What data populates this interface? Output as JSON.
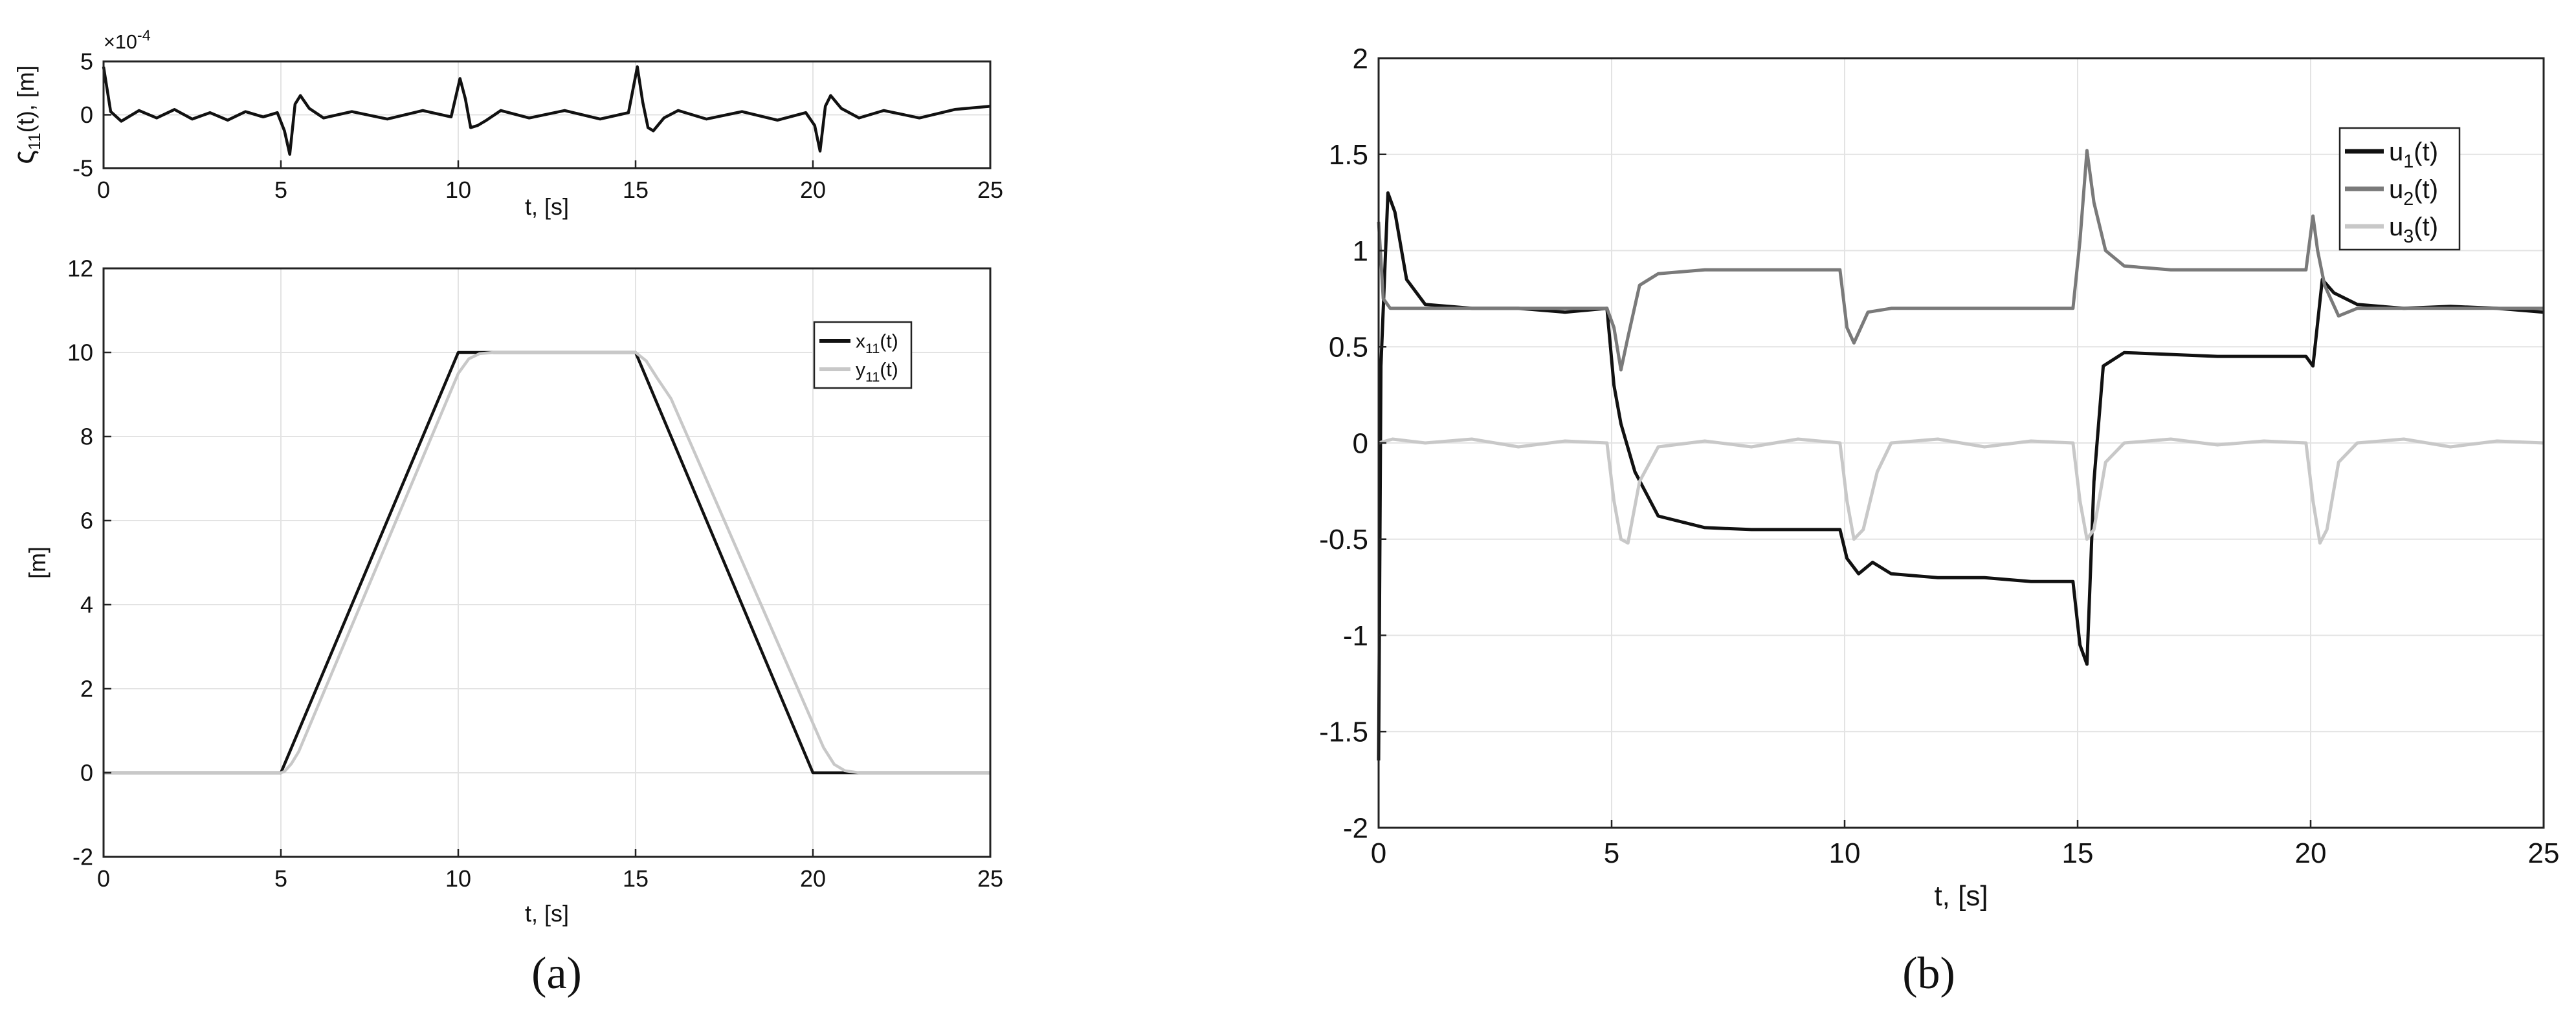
{
  "panels": {
    "a_label": "(a)",
    "b_label": "(b)"
  },
  "chart_data": [
    {
      "id": "a_top",
      "type": "line",
      "ylabel": "ς11(t), [m]",
      "xlabel": "t, [s]",
      "exponent": "×10-4",
      "xlim": [
        0,
        25
      ],
      "ylim": [
        -5,
        5
      ],
      "xticks": [
        0,
        5,
        10,
        15,
        20,
        25
      ],
      "yticks": [
        -5,
        0,
        5
      ],
      "grid": true,
      "series": [
        {
          "color": "#111111",
          "x": [
            0,
            0.2,
            0.5,
            1,
            1.5,
            2,
            2.5,
            3,
            3.5,
            4,
            4.5,
            4.9,
            5.1,
            5.25,
            5.4,
            5.55,
            5.8,
            6.2,
            7,
            8,
            9,
            9.8,
            10.05,
            10.2,
            10.35,
            10.55,
            10.8,
            11.2,
            12,
            13,
            14,
            14.8,
            15.05,
            15.2,
            15.35,
            15.5,
            15.8,
            16.2,
            17,
            18,
            19,
            19.8,
            20.05,
            20.2,
            20.35,
            20.5,
            20.8,
            21.3,
            22,
            23,
            24,
            25
          ],
          "y": [
            4.5,
            0.3,
            -0.6,
            0.4,
            -0.3,
            0.5,
            -0.4,
            0.2,
            -0.5,
            0.3,
            -0.2,
            0.2,
            -1.5,
            -3.7,
            1.0,
            1.8,
            0.6,
            -0.3,
            0.3,
            -0.4,
            0.4,
            -0.2,
            3.4,
            1.5,
            -1.2,
            -1.0,
            -0.5,
            0.4,
            -0.3,
            0.4,
            -0.4,
            0.2,
            4.5,
            1.2,
            -1.2,
            -1.5,
            -0.3,
            0.4,
            -0.4,
            0.3,
            -0.5,
            0.2,
            -1.0,
            -3.4,
            0.8,
            1.8,
            0.6,
            -0.3,
            0.4,
            -0.3,
            0.5,
            0.8
          ]
        }
      ]
    },
    {
      "id": "a_bottom",
      "type": "line",
      "ylabel": "[m]",
      "xlabel": "t, [s]",
      "xlim": [
        0,
        25
      ],
      "ylim": [
        -2,
        12
      ],
      "xticks": [
        0,
        5,
        10,
        15,
        20,
        25
      ],
      "yticks": [
        -2,
        0,
        2,
        4,
        6,
        8,
        10,
        12
      ],
      "grid": true,
      "legend_position": "top-right",
      "series": [
        {
          "name": "x11(t)",
          "color": "#111111",
          "x": [
            0,
            5,
            10,
            15,
            20,
            25
          ],
          "y": [
            0,
            0,
            10,
            10,
            0,
            0
          ]
        },
        {
          "name": "y11(t)",
          "color": "#c8c8c8",
          "x": [
            0,
            5,
            5.1,
            5.3,
            5.5,
            10,
            10.3,
            10.6,
            11,
            15,
            15.3,
            15.6,
            16,
            20.3,
            20.6,
            20.9,
            21.3,
            25
          ],
          "y": [
            0,
            0,
            0.03,
            0.22,
            0.5,
            9.5,
            9.85,
            9.97,
            10,
            10,
            9.8,
            9.4,
            8.9,
            0.6,
            0.2,
            0.05,
            0,
            0
          ]
        }
      ]
    },
    {
      "id": "b",
      "type": "line",
      "xlabel": "t, [s]",
      "ylabel": "",
      "xlim": [
        0,
        25
      ],
      "ylim": [
        -2,
        2
      ],
      "xticks": [
        0,
        5,
        10,
        15,
        20,
        25
      ],
      "yticks": [
        -2,
        -1.5,
        -1,
        -0.5,
        0,
        0.5,
        1,
        1.5,
        2
      ],
      "grid": true,
      "legend_position": "top-right",
      "series": [
        {
          "name": "u1(t)",
          "color": "#111111",
          "x": [
            0,
            0.05,
            0.2,
            0.35,
            0.6,
            1,
            2,
            3,
            4,
            4.9,
            5.05,
            5.2,
            5.5,
            6,
            7,
            8,
            9,
            9.9,
            10.05,
            10.3,
            10.6,
            11,
            12,
            13,
            14,
            14.9,
            15.05,
            15.2,
            15.35,
            15.55,
            16,
            17,
            18,
            19,
            19.9,
            20.05,
            20.25,
            20.5,
            21,
            22,
            23,
            24,
            25
          ],
          "y": [
            -1.65,
            0.4,
            1.3,
            1.2,
            0.85,
            0.72,
            0.7,
            0.7,
            0.68,
            0.7,
            0.3,
            0.1,
            -0.15,
            -0.38,
            -0.44,
            -0.45,
            -0.45,
            -0.45,
            -0.6,
            -0.68,
            -0.62,
            -0.68,
            -0.7,
            -0.7,
            -0.72,
            -0.72,
            -1.05,
            -1.15,
            -0.2,
            0.4,
            0.47,
            0.46,
            0.45,
            0.45,
            0.45,
            0.4,
            0.85,
            0.78,
            0.72,
            0.7,
            0.71,
            0.7,
            0.68
          ]
        },
        {
          "name": "u2(t)",
          "color": "#7a7a7a",
          "x": [
            0,
            0.1,
            0.25,
            0.5,
            1,
            2,
            3,
            4,
            4.9,
            5.05,
            5.2,
            5.35,
            5.6,
            6,
            7,
            8,
            9,
            9.9,
            10.05,
            10.2,
            10.5,
            11,
            12,
            13,
            14,
            14.9,
            15.05,
            15.2,
            15.35,
            15.6,
            16,
            17,
            18,
            19,
            19.9,
            20.05,
            20.15,
            20.3,
            20.6,
            21,
            22,
            23,
            24,
            25
          ],
          "y": [
            1.15,
            0.75,
            0.7,
            0.7,
            0.7,
            0.7,
            0.7,
            0.7,
            0.7,
            0.6,
            0.38,
            0.55,
            0.82,
            0.88,
            0.9,
            0.9,
            0.9,
            0.9,
            0.6,
            0.52,
            0.68,
            0.7,
            0.7,
            0.7,
            0.7,
            0.7,
            1.05,
            1.52,
            1.25,
            1.0,
            0.92,
            0.9,
            0.9,
            0.9,
            0.9,
            1.18,
            1.0,
            0.82,
            0.66,
            0.7,
            0.7,
            0.7,
            0.7,
            0.7
          ]
        },
        {
          "name": "u3(t)",
          "color": "#c8c8c8",
          "x": [
            0,
            0.3,
            1,
            2,
            3,
            4,
            4.9,
            5.05,
            5.2,
            5.35,
            5.6,
            6,
            7,
            8,
            9,
            9.9,
            10.05,
            10.2,
            10.4,
            10.7,
            11,
            12,
            13,
            14,
            14.9,
            15.05,
            15.2,
            15.35,
            15.6,
            16,
            17,
            18,
            19,
            19.9,
            20.05,
            20.2,
            20.35,
            20.6,
            21,
            22,
            23,
            24,
            25
          ],
          "y": [
            0,
            0.02,
            0,
            0.02,
            -0.02,
            0.01,
            0,
            -0.3,
            -0.5,
            -0.52,
            -0.2,
            -0.02,
            0.01,
            -0.02,
            0.02,
            0,
            -0.3,
            -0.5,
            -0.45,
            -0.15,
            0,
            0.02,
            -0.02,
            0.01,
            0,
            -0.3,
            -0.5,
            -0.45,
            -0.1,
            0,
            0.02,
            -0.01,
            0.01,
            0,
            -0.3,
            -0.52,
            -0.45,
            -0.1,
            0,
            0.02,
            -0.02,
            0.01,
            0
          ]
        }
      ]
    }
  ]
}
